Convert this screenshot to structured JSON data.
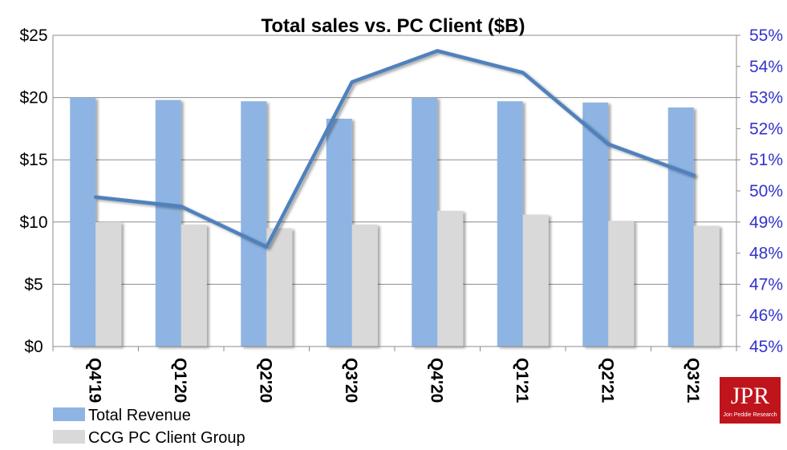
{
  "chart_data": {
    "type": "bar",
    "title": "Total sales vs. PC Client ($B)",
    "categories": [
      "Q4'19",
      "Q1'20",
      "Q2'20",
      "Q3'20",
      "Q4'20",
      "Q1'21",
      "Q2'21",
      "Q3'21"
    ],
    "series": [
      {
        "name": "Total Revenue",
        "type": "bar",
        "axis": "left",
        "color": "#8eb4e3",
        "values": [
          20.0,
          19.8,
          19.7,
          18.3,
          20.0,
          19.7,
          19.6,
          19.2
        ]
      },
      {
        "name": "CCG PC Client Group",
        "type": "bar",
        "axis": "left",
        "color": "#d9d9d9",
        "values": [
          10.0,
          9.8,
          9.5,
          9.8,
          10.9,
          10.6,
          10.1,
          9.7
        ]
      },
      {
        "type": "line",
        "axis": "right",
        "color": "#4f81bd",
        "values": [
          49.8,
          49.5,
          48.2,
          53.5,
          54.5,
          53.8,
          51.5,
          50.5
        ]
      }
    ],
    "yaxis_left": {
      "range": [
        0,
        25
      ],
      "ticks": [
        0,
        5,
        10,
        15,
        20,
        25
      ],
      "tick_labels": [
        "$0",
        "$5",
        "$10",
        "$15",
        "$20",
        "$25"
      ]
    },
    "yaxis_right": {
      "range": [
        45,
        55
      ],
      "ticks": [
        45,
        46,
        47,
        48,
        49,
        50,
        51,
        52,
        53,
        54,
        55
      ],
      "tick_labels": [
        "45%",
        "46%",
        "47%",
        "48%",
        "49%",
        "50%",
        "51%",
        "52%",
        "53%",
        "54%",
        "55%"
      ],
      "color": "#3333cc"
    },
    "xlabel": "",
    "ylabel": "",
    "grid": true,
    "legend_position": "bottom-left"
  },
  "logo": {
    "big": "JPR",
    "small": "Jon Peddie Research",
    "color": "#c0141c"
  }
}
